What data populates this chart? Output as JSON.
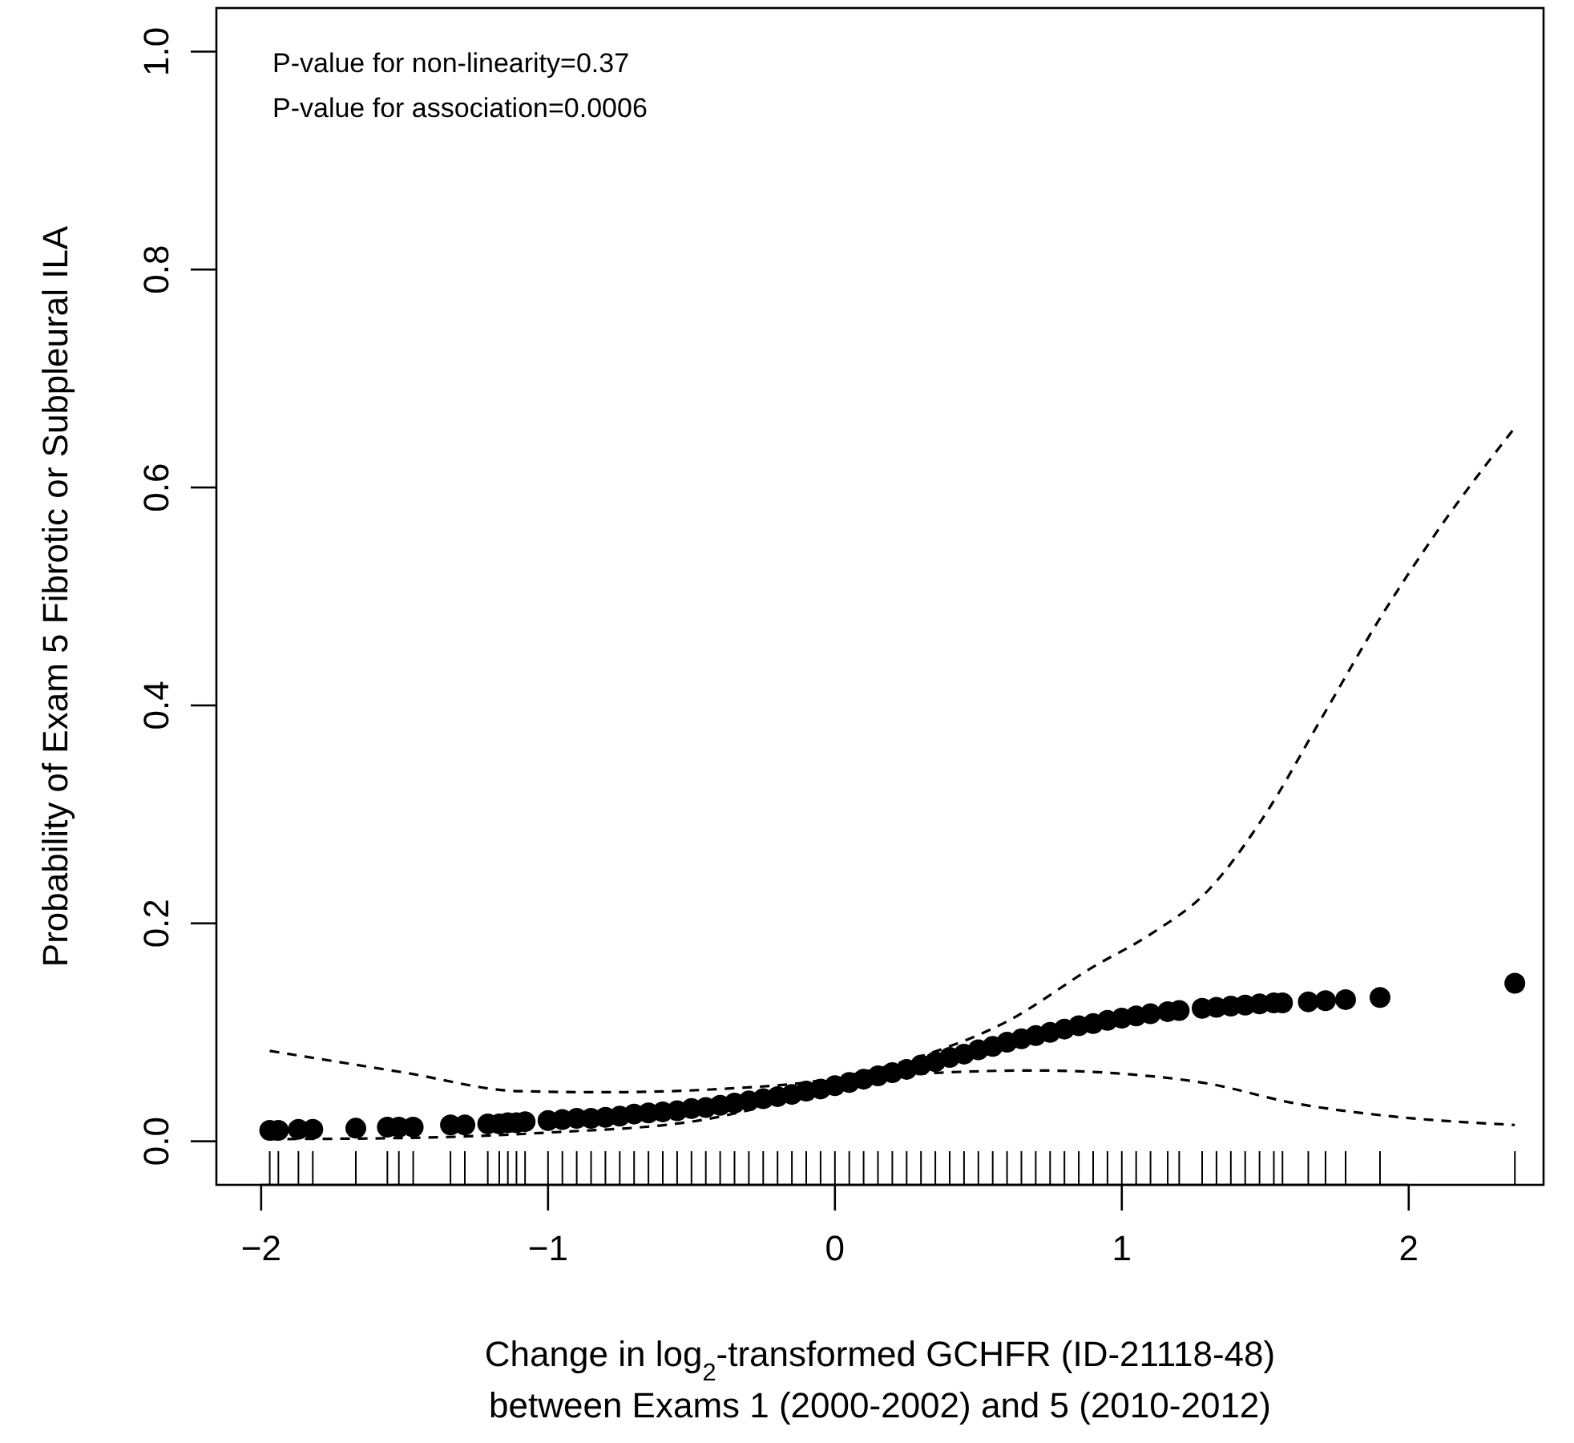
{
  "chart_data": {
    "type": "scatter",
    "xlabel": "Change in log$_{2}$-transformed GCHFR (ID-21118-48)\nbetween Exams 1 (2000-2002) and 5 (2010-2012)",
    "ylabel": "Probability of Exam 5 Fibrotic or Subpleural ILA",
    "annotations": [
      "P-value for non-linearity=0.37",
      "P-value for association=0.0006"
    ],
    "xlim": [
      -2.156,
      2.47
    ],
    "ylim": [
      -0.04,
      1.04
    ],
    "xticks": [
      {
        "value": -2,
        "label": "−2"
      },
      {
        "value": -1,
        "label": "−1"
      },
      0,
      1,
      2
    ],
    "yticks": [
      {
        "value": 0,
        "label": "0.0"
      },
      {
        "value": 0.2,
        "label": "0.2"
      },
      {
        "value": 0.4,
        "label": "0.4"
      },
      {
        "value": 0.6,
        "label": "0.6"
      },
      {
        "value": 0.8,
        "label": "0.8"
      },
      {
        "value": 1,
        "label": "1.0"
      }
    ],
    "grid": false,
    "series": [
      {
        "marker": "circle",
        "color": "#000000",
        "x": [
          -1.97,
          -1.94,
          -1.87,
          -1.82,
          -1.67,
          -1.56,
          -1.52,
          -1.47,
          -1.34,
          -1.29,
          -1.21,
          -1.17,
          -1.14,
          -1.11,
          -1.08,
          -1.0,
          -0.95,
          -0.9,
          -0.85,
          -0.8,
          -0.75,
          -0.7,
          -0.65,
          -0.6,
          -0.55,
          -0.5,
          -0.45,
          -0.4,
          -0.35,
          -0.3,
          -0.25,
          -0.2,
          -0.15,
          -0.1,
          -0.05,
          0,
          0.05,
          0.1,
          0.15,
          0.2,
          0.25,
          0.3,
          0.35,
          0.4,
          0.45,
          0.5,
          0.55,
          0.6,
          0.65,
          0.7,
          0.75,
          0.8,
          0.85,
          0.9,
          0.95,
          1.0,
          1.05,
          1.1,
          1.16,
          1.2,
          1.28,
          1.33,
          1.38,
          1.43,
          1.48,
          1.53,
          1.56,
          1.65,
          1.71,
          1.78,
          1.9,
          2.37
        ],
        "values": [
          0.01,
          0.01,
          0.011,
          0.011,
          0.012,
          0.013,
          0.013,
          0.013,
          0.015,
          0.015,
          0.016,
          0.016,
          0.017,
          0.017,
          0.018,
          0.019,
          0.02,
          0.021,
          0.021,
          0.022,
          0.023,
          0.025,
          0.026,
          0.027,
          0.028,
          0.03,
          0.031,
          0.033,
          0.035,
          0.037,
          0.039,
          0.041,
          0.043,
          0.046,
          0.048,
          0.051,
          0.054,
          0.057,
          0.06,
          0.063,
          0.066,
          0.07,
          0.073,
          0.077,
          0.08,
          0.084,
          0.087,
          0.091,
          0.094,
          0.097,
          0.1,
          0.103,
          0.106,
          0.108,
          0.111,
          0.113,
          0.115,
          0.117,
          0.119,
          0.12,
          0.122,
          0.123,
          0.124,
          0.125,
          0.126,
          0.127,
          0.127,
          0.128,
          0.129,
          0.13,
          0.132,
          0.145
        ]
      },
      {
        "type": "line",
        "line_style": "dashed",
        "color": "#000000",
        "x": [
          -1.97,
          -1.5,
          -1.1,
          -0.8,
          -0.4,
          0,
          0.3,
          0.6,
          0.9,
          1.1,
          1.3,
          1.5,
          1.7,
          1.9,
          2.1,
          2.37
        ],
        "values": [
          0.083,
          0.063,
          0.046,
          0.045,
          0.048,
          0.058,
          0.078,
          0.11,
          0.16,
          0.19,
          0.23,
          0.3,
          0.39,
          0.48,
          0.56,
          0.655
        ]
      },
      {
        "type": "line",
        "line_style": "dashed",
        "color": "#000000",
        "x": [
          -1.97,
          -1.5,
          -1.0,
          -0.5,
          0,
          0.3,
          0.7,
          1.0,
          1.3,
          1.6,
          1.9,
          2.37
        ],
        "values": [
          0.002,
          0.003,
          0.008,
          0.018,
          0.047,
          0.062,
          0.065,
          0.062,
          0.053,
          0.035,
          0.024,
          0.015
        ]
      }
    ]
  }
}
